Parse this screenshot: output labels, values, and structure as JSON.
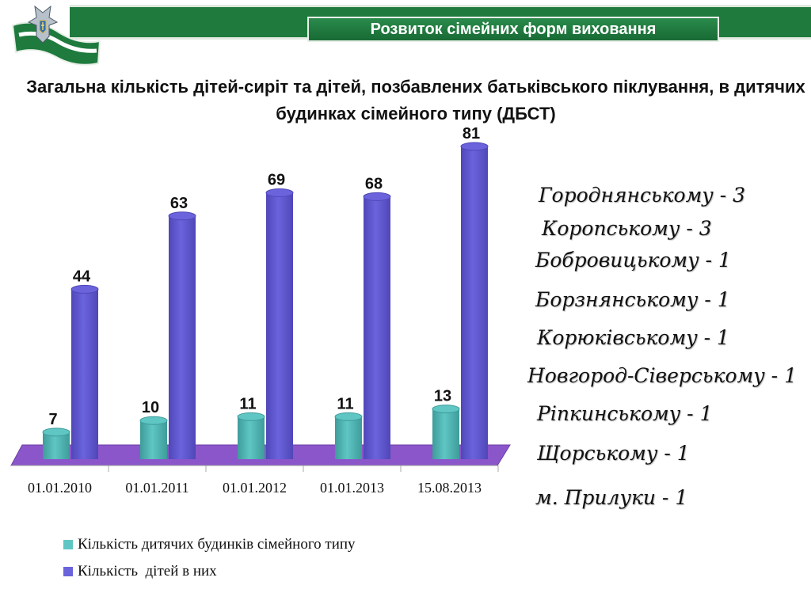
{
  "header": {
    "title": "Розвиток сімейних форм виховання"
  },
  "slide_title": "Загальна кількість дітей-сиріт та дітей, позбавлених батьківського піклування, в дитячих будинках сімейного типу (ДБСТ)",
  "colors": {
    "banner_green": "#1f7a3e",
    "series_teal": "#5fc6c4",
    "series_blue": "#6b63dc",
    "floor_purple": "#8a56c9"
  },
  "chart_data": {
    "type": "bar",
    "categories": [
      "01.01.2010",
      "01.01.2011",
      "01.01.2012",
      "01.01.2013",
      "15.08.2013"
    ],
    "series": [
      {
        "name": "Кількість дитячих будинків сімейного типу",
        "values": [
          7,
          10,
          11,
          11,
          13
        ]
      },
      {
        "name": "Кількість  дітей в них",
        "values": [
          44,
          63,
          69,
          68,
          81
        ]
      }
    ],
    "ylim": [
      0,
      81
    ],
    "grid": false,
    "legend_position": "bottom"
  },
  "regions": [
    "Городнянському - 3",
    "Коропському - 3",
    "Бобровицькому - 1",
    "Борзнянському - 1",
    "Корюківському - 1",
    "Новгород-Сіверському - 1",
    "Ріпкинському - 1",
    "Щорському - 1",
    "м. Прилуки - 1"
  ]
}
